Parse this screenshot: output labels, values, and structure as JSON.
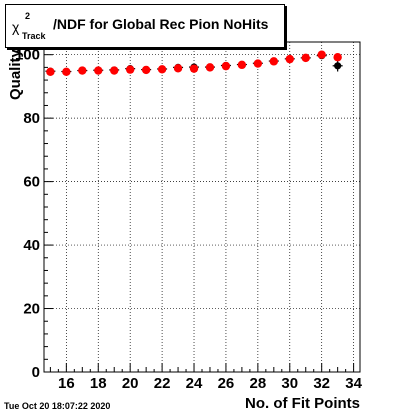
{
  "title": {
    "symbol": "χ",
    "superscript": "2",
    "subscript": "Track",
    "text": "/NDF for Global Rec Pion NoHits"
  },
  "timestamp": "Tue Oct 20 18:07:22 2020",
  "chart_data": {
    "type": "scatter",
    "xlabel": "No. of Fit Points",
    "ylabel": "Quality",
    "xlim": [
      14.6,
      34.4
    ],
    "ylim": [
      0,
      104
    ],
    "x_ticks": [
      16,
      18,
      20,
      22,
      24,
      26,
      28,
      30,
      32,
      34
    ],
    "y_ticks": [
      0,
      20,
      40,
      60,
      80,
      100
    ],
    "grid": true,
    "series": [
      {
        "color": "#000000",
        "marker": "cross-with-errorbars",
        "x": [
          15,
          16,
          17,
          18,
          19,
          20,
          21,
          22,
          23,
          24,
          25,
          26,
          27,
          28,
          29,
          30,
          31,
          32,
          33
        ],
        "y": [
          94.8,
          94.7,
          95.0,
          95.1,
          95.2,
          95.6,
          95.3,
          95.5,
          96.0,
          96.1,
          96.1,
          96.6,
          96.9,
          97.3,
          98.0,
          98.7,
          99.0,
          99.7,
          96.5
        ],
        "yerr": [
          0.8,
          0.8,
          0.8,
          0.8,
          0.8,
          0.9,
          0.8,
          0.8,
          0.9,
          0.9,
          0.9,
          0.8,
          0.8,
          0.8,
          0.8,
          0.8,
          0.9,
          1.0,
          1.8
        ]
      },
      {
        "color": "#ff0000",
        "marker": "circle",
        "x": [
          15,
          16,
          17,
          18,
          19,
          20,
          21,
          22,
          23,
          24,
          25,
          26,
          27,
          28,
          29,
          30,
          31,
          32,
          33
        ],
        "y": [
          94.6,
          94.6,
          95.0,
          95.0,
          95.0,
          95.3,
          95.2,
          95.4,
          95.7,
          95.6,
          96.0,
          96.4,
          96.8,
          97.2,
          97.9,
          98.6,
          99.0,
          100.0,
          99.2
        ]
      }
    ]
  }
}
